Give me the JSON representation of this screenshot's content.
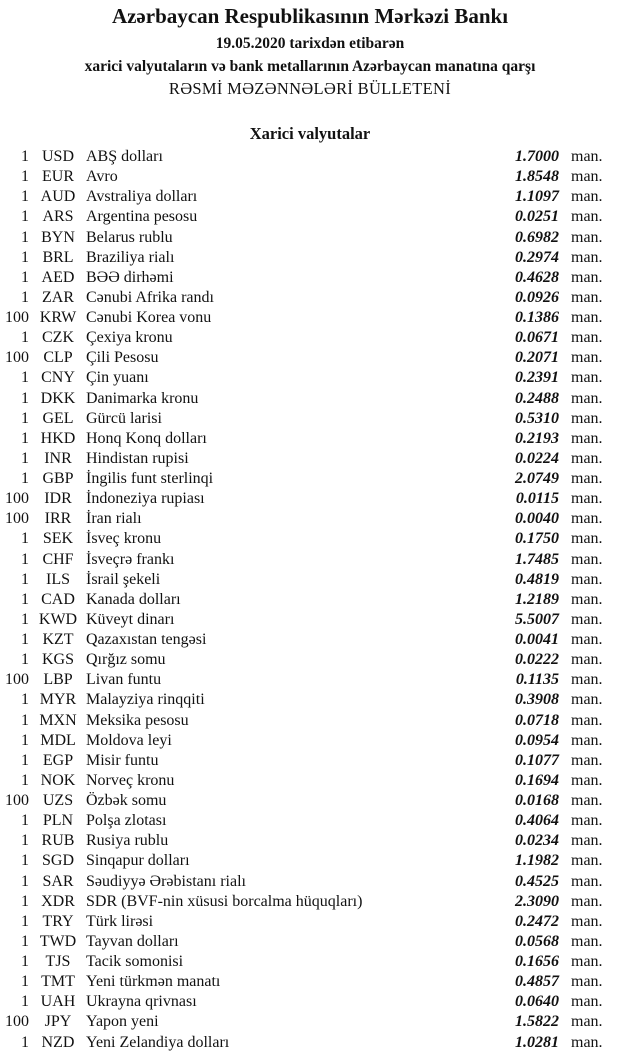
{
  "header": {
    "title": "Azərbaycan Respublikasının Mərkəzi Bankı",
    "date_line": "19.05.2020  tarixdən etibarən",
    "subtitle": "xarici valyutaların və bank metallarının Azərbaycan manatına qarşı",
    "bulletin": "RƏSMİ MƏZƏNNƏLƏRİ BÜLLETENİ"
  },
  "section": {
    "title": "Xarici valyutalar",
    "unit": "man.",
    "rows": [
      {
        "amount": "1",
        "code": "USD",
        "name": "ABŞ dolları",
        "rate": "1.7000"
      },
      {
        "amount": "1",
        "code": "EUR",
        "name": "Avro",
        "rate": "1.8548"
      },
      {
        "amount": "1",
        "code": "AUD",
        "name": "Avstraliya dolları",
        "rate": "1.1097"
      },
      {
        "amount": "1",
        "code": "ARS",
        "name": "Argentina pesosu",
        "rate": "0.0251"
      },
      {
        "amount": "1",
        "code": "BYN",
        "name": "Belarus rublu",
        "rate": "0.6982"
      },
      {
        "amount": "1",
        "code": "BRL",
        "name": "Braziliya rialı",
        "rate": "0.2974"
      },
      {
        "amount": "1",
        "code": "AED",
        "name": "BƏƏ dirhəmi",
        "rate": "0.4628"
      },
      {
        "amount": "1",
        "code": "ZAR",
        "name": "Cənubi Afrika randı",
        "rate": "0.0926"
      },
      {
        "amount": "100",
        "code": "KRW",
        "name": "Cənubi Korea vonu",
        "rate": "0.1386"
      },
      {
        "amount": "1",
        "code": "CZK",
        "name": "Çexiya kronu",
        "rate": "0.0671"
      },
      {
        "amount": "100",
        "code": "CLP",
        "name": "Çili Pesosu",
        "rate": "0.2071"
      },
      {
        "amount": "1",
        "code": "CNY",
        "name": "Çin yuanı",
        "rate": "0.2391"
      },
      {
        "amount": "1",
        "code": "DKK",
        "name": "Danimarka kronu",
        "rate": "0.2488"
      },
      {
        "amount": "1",
        "code": "GEL",
        "name": "Gürcü larisi",
        "rate": "0.5310"
      },
      {
        "amount": "1",
        "code": "HKD",
        "name": "Honq Konq dolları",
        "rate": "0.2193"
      },
      {
        "amount": "1",
        "code": "INR",
        "name": "Hindistan rupisi",
        "rate": "0.0224"
      },
      {
        "amount": "1",
        "code": "GBP",
        "name": "İngilis funt sterlinqi",
        "rate": "2.0749"
      },
      {
        "amount": "100",
        "code": "IDR",
        "name": "İndoneziya rupiası",
        "rate": "0.0115"
      },
      {
        "amount": "100",
        "code": "IRR",
        "name": "İran rialı",
        "rate": "0.0040"
      },
      {
        "amount": "1",
        "code": "SEK",
        "name": "İsveç kronu",
        "rate": "0.1750"
      },
      {
        "amount": "1",
        "code": "CHF",
        "name": "İsveçrə frankı",
        "rate": "1.7485"
      },
      {
        "amount": "1",
        "code": "ILS",
        "name": "İsrail şekeli",
        "rate": "0.4819"
      },
      {
        "amount": "1",
        "code": "CAD",
        "name": "Kanada dolları",
        "rate": "1.2189"
      },
      {
        "amount": "1",
        "code": "KWD",
        "name": "Küveyt dinarı",
        "rate": "5.5007"
      },
      {
        "amount": "1",
        "code": "KZT",
        "name": "Qazaxıstan tengəsi",
        "rate": "0.0041"
      },
      {
        "amount": "1",
        "code": "KGS",
        "name": "Qırğız somu",
        "rate": "0.0222"
      },
      {
        "amount": "100",
        "code": "LBP",
        "name": "Livan funtu",
        "rate": "0.1135"
      },
      {
        "amount": "1",
        "code": "MYR",
        "name": "Malayziya rinqqiti",
        "rate": "0.3908"
      },
      {
        "amount": "1",
        "code": "MXN",
        "name": "Meksika pesosu",
        "rate": "0.0718"
      },
      {
        "amount": "1",
        "code": "MDL",
        "name": "Moldova leyi",
        "rate": "0.0954"
      },
      {
        "amount": "1",
        "code": "EGP",
        "name": "Misir funtu",
        "rate": "0.1077"
      },
      {
        "amount": "1",
        "code": "NOK",
        "name": "Norveç kronu",
        "rate": "0.1694"
      },
      {
        "amount": "100",
        "code": "UZS",
        "name": "Özbək somu",
        "rate": "0.0168"
      },
      {
        "amount": "1",
        "code": "PLN",
        "name": "Polşa zlotası",
        "rate": "0.4064"
      },
      {
        "amount": "1",
        "code": "RUB",
        "name": "Rusiya rublu",
        "rate": "0.0234"
      },
      {
        "amount": "1",
        "code": "SGD",
        "name": "Sinqapur dolları",
        "rate": "1.1982"
      },
      {
        "amount": "1",
        "code": "SAR",
        "name": "Səudiyyə Ərəbistanı rialı",
        "rate": "0.4525"
      },
      {
        "amount": "1",
        "code": "XDR",
        "name": "SDR (BVF-nin xüsusi borcalma hüquqları)",
        "rate": "2.3090"
      },
      {
        "amount": "1",
        "code": "TRY",
        "name": "Türk lirəsi",
        "rate": "0.2472"
      },
      {
        "amount": "1",
        "code": "TWD",
        "name": "Tayvan dolları",
        "rate": "0.0568"
      },
      {
        "amount": "1",
        "code": "TJS",
        "name": "Tacik somonisi",
        "rate": "0.1656"
      },
      {
        "amount": "1",
        "code": "TMT",
        "name": "Yeni türkmən manatı",
        "rate": "0.4857"
      },
      {
        "amount": "1",
        "code": "UAH",
        "name": "Ukrayna qrivnası",
        "rate": "0.0640"
      },
      {
        "amount": "100",
        "code": "JPY",
        "name": "Yapon yeni",
        "rate": "1.5822"
      },
      {
        "amount": "1",
        "code": "NZD",
        "name": "Yeni Zelandiya dolları",
        "rate": "1.0281"
      }
    ]
  }
}
